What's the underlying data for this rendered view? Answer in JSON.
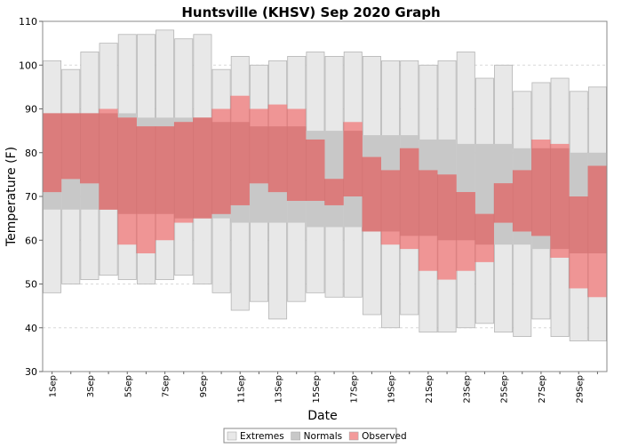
{
  "chart_data": {
    "type": "bar",
    "title": "Huntsville (KHSV) Sep 2020 Graph",
    "xlabel": "Date",
    "ylabel": "Temperature (F)",
    "ylim": [
      30,
      110
    ],
    "yticks": [
      30,
      40,
      50,
      60,
      70,
      80,
      90,
      100,
      110
    ],
    "grid": true,
    "legend_position": "bottom-center",
    "days": [
      "1Sep",
      "2Sep",
      "3Sep",
      "4Sep",
      "5Sep",
      "6Sep",
      "7Sep",
      "8Sep",
      "9Sep",
      "10Sep",
      "11Sep",
      "12Sep",
      "13Sep",
      "14Sep",
      "15Sep",
      "16Sep",
      "17Sep",
      "18Sep",
      "19Sep",
      "20Sep",
      "21Sep",
      "22Sep",
      "23Sep",
      "24Sep",
      "25Sep",
      "26Sep",
      "27Sep",
      "28Sep",
      "29Sep",
      "30Sep"
    ],
    "x_tick_labels": [
      "1Sep",
      "3Sep",
      "5Sep",
      "7Sep",
      "9Sep",
      "11Sep",
      "13Sep",
      "15Sep",
      "17Sep",
      "19Sep",
      "21Sep",
      "23Sep",
      "25Sep",
      "27Sep",
      "29Sep"
    ],
    "series": [
      {
        "name": "Extremes",
        "color": "#e8e8e8",
        "high": [
          101,
          99,
          103,
          105,
          107,
          107,
          108,
          106,
          107,
          99,
          102,
          100,
          101,
          102,
          103,
          102,
          103,
          102,
          101,
          101,
          100,
          101,
          103,
          97,
          100,
          94,
          96,
          97,
          94,
          95
        ],
        "low": [
          48,
          50,
          51,
          52,
          51,
          50,
          51,
          52,
          50,
          48,
          44,
          46,
          42,
          46,
          48,
          47,
          47,
          43,
          40,
          43,
          39,
          39,
          40,
          41,
          39,
          38,
          42,
          38,
          37,
          37
        ]
      },
      {
        "name": "Normals",
        "color": "#c8c8c8",
        "high": [
          89,
          89,
          89,
          89,
          89,
          88,
          88,
          88,
          88,
          87,
          87,
          86,
          86,
          86,
          85,
          85,
          85,
          84,
          84,
          84,
          83,
          83,
          82,
          82,
          82,
          81,
          81,
          81,
          80,
          80
        ],
        "low": [
          67,
          67,
          67,
          67,
          66,
          66,
          66,
          65,
          65,
          65,
          64,
          64,
          64,
          64,
          63,
          63,
          63,
          62,
          62,
          61,
          61,
          60,
          60,
          59,
          59,
          59,
          58,
          58,
          57,
          57
        ]
      },
      {
        "name": "Observed",
        "color": "#f08080",
        "high": [
          89,
          89,
          89,
          90,
          88,
          86,
          86,
          87,
          88,
          90,
          93,
          90,
          91,
          90,
          83,
          74,
          87,
          79,
          76,
          81,
          76,
          75,
          71,
          66,
          73,
          76,
          83,
          82,
          70,
          77
        ],
        "low": [
          71,
          74,
          73,
          67,
          59,
          57,
          60,
          64,
          65,
          66,
          68,
          73,
          71,
          69,
          69,
          68,
          70,
          62,
          59,
          58,
          53,
          51,
          53,
          55,
          64,
          62,
          61,
          56,
          49,
          47
        ]
      }
    ]
  }
}
